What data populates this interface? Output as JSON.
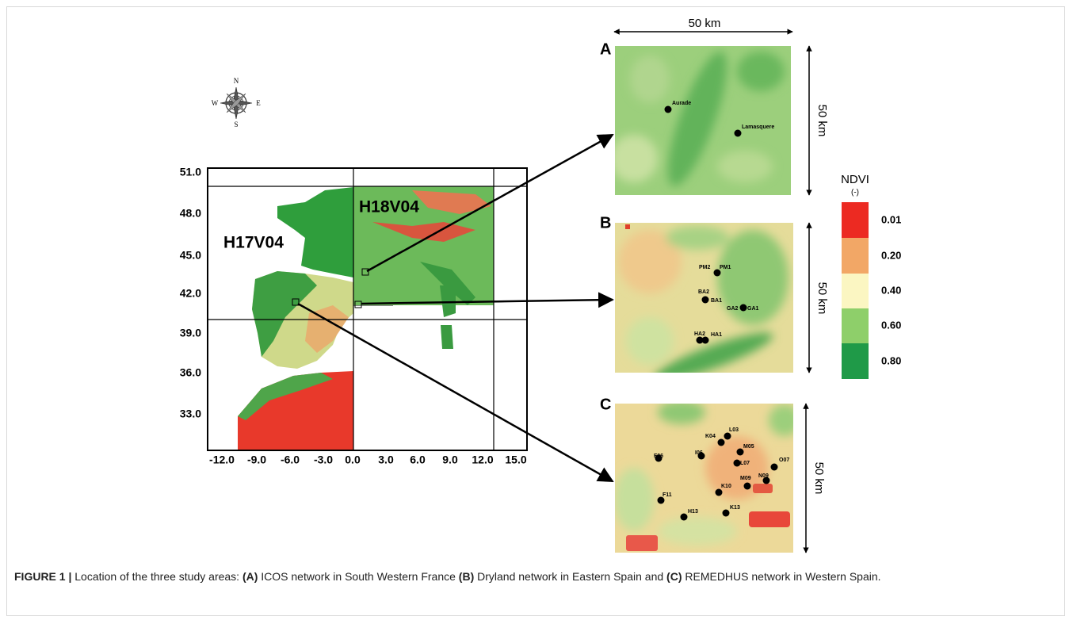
{
  "figure": {
    "scale_top": "50 km",
    "compass": {
      "n": "N",
      "s": "S",
      "e": "E",
      "w": "W"
    },
    "map": {
      "tiles": [
        "H17V04",
        "H18V04"
      ],
      "yticks": [
        "51.0",
        "48.0",
        "45.0",
        "42.0",
        "39.0",
        "36.0",
        "33.0"
      ],
      "xticks": [
        "-12.0",
        "-9.0",
        "-6.0",
        "-3.0",
        "0.0",
        "3.0",
        "6.0",
        "9.0",
        "12.0",
        "15.0"
      ]
    },
    "panels": [
      {
        "letter": "A",
        "scale": "50 km",
        "stations": [
          "Aurade",
          "Lamasquere"
        ]
      },
      {
        "letter": "B",
        "scale": "50 km",
        "stations": [
          "PM2",
          "PM1",
          "BA2",
          "BA1",
          "GA2",
          "GA1",
          "HA2",
          "HA1"
        ]
      },
      {
        "letter": "C",
        "scale": "50 km",
        "stations": [
          "K04",
          "L03",
          "M05",
          "F06",
          "I06",
          "L07",
          "O07",
          "M09",
          "N09",
          "K10",
          "F11",
          "K13",
          "H13"
        ]
      }
    ],
    "legend": {
      "title": "NDVI",
      "unit": "(-)",
      "labels": [
        "0.01",
        "0.20",
        "0.40",
        "0.60",
        "0.80"
      ]
    }
  },
  "caption": {
    "label": "FIGURE 1 |",
    "parts": [
      " Location of the three study areas: ",
      "(A)",
      " ICOS network in South Western France ",
      "(B)",
      " Dryland network in Eastern Spain and ",
      "(C)",
      " REMEDHUS network in Western Spain."
    ]
  }
}
